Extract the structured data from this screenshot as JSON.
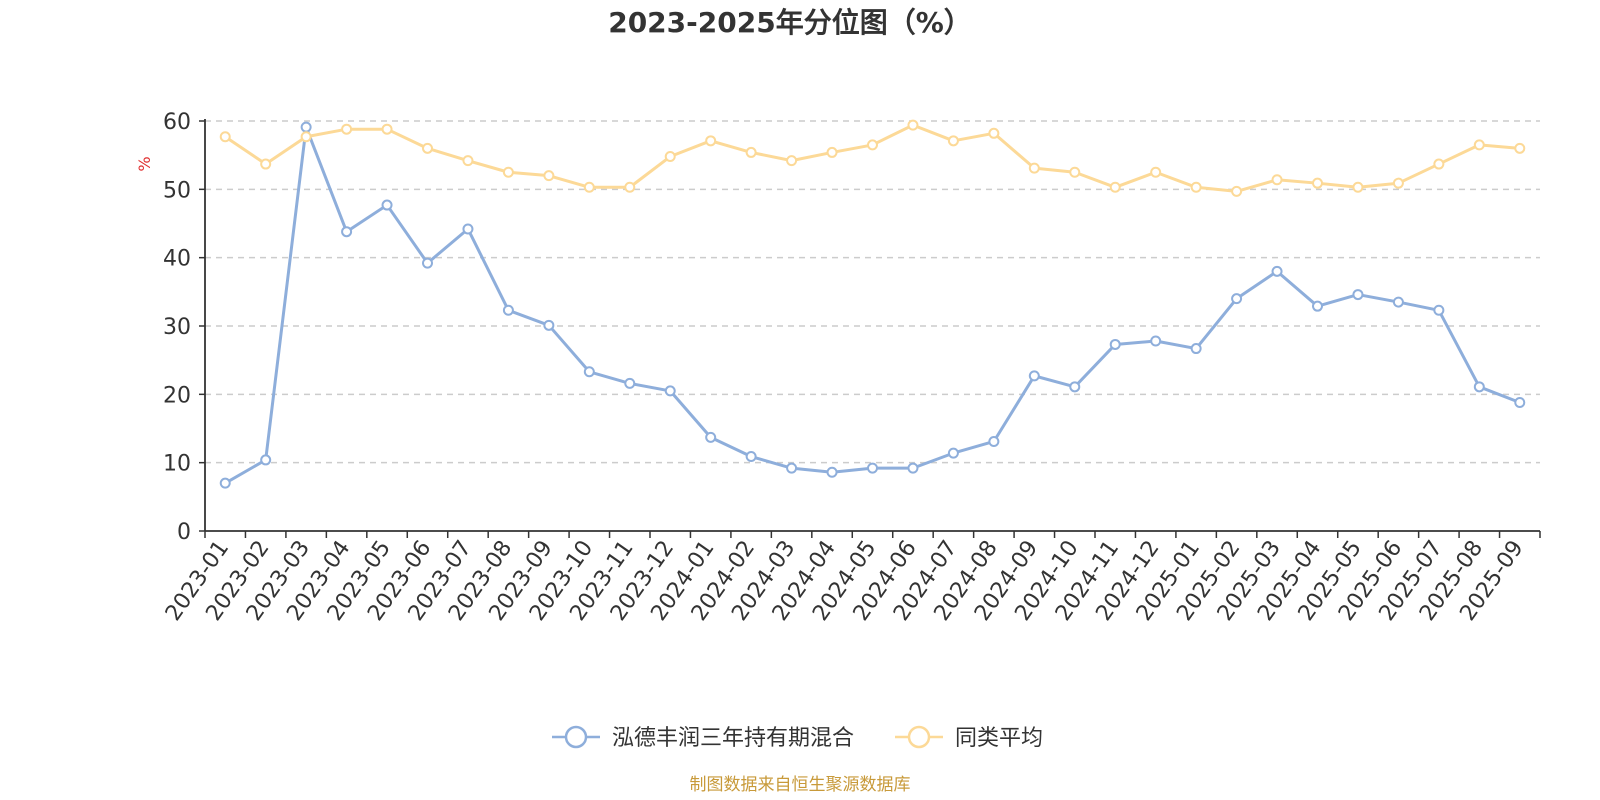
{
  "chart_data": {
    "type": "line",
    "title": "2023-2025年分位图（%）",
    "ylabel": "%",
    "xlabel": "",
    "ylim": [
      0,
      60
    ],
    "yticks": [
      0,
      10,
      20,
      30,
      40,
      50,
      60
    ],
    "grid": true,
    "legend_position": "bottom-center",
    "categories": [
      "2023-01",
      "2023-02",
      "2023-03",
      "2023-04",
      "2023-05",
      "2023-06",
      "2023-07",
      "2023-08",
      "2023-09",
      "2023-10",
      "2023-11",
      "2023-12",
      "2024-01",
      "2024-02",
      "2024-03",
      "2024-04",
      "2024-05",
      "2024-06",
      "2024-07",
      "2024-08",
      "2024-09",
      "2024-10",
      "2024-11",
      "2024-12",
      "2025-01",
      "2025-02",
      "2025-03",
      "2025-04",
      "2025-05",
      "2025-06",
      "2025-07",
      "2025-08",
      "2025-09"
    ],
    "series": [
      {
        "name": "泓德丰润三年持有期混合",
        "color": "#8eaedb",
        "values": [
          7.0,
          10.4,
          59.1,
          43.8,
          47.7,
          39.2,
          44.2,
          32.3,
          30.1,
          23.3,
          21.6,
          20.5,
          13.7,
          10.9,
          9.2,
          8.6,
          9.2,
          9.2,
          11.4,
          13.1,
          22.7,
          21.1,
          27.3,
          27.8,
          26.7,
          34.0,
          38.0,
          32.9,
          34.6,
          33.5,
          32.3,
          21.1,
          18.8
        ]
      },
      {
        "name": "同类平均",
        "color": "#fcd997",
        "values": [
          57.7,
          53.7,
          57.7,
          58.8,
          58.8,
          56.0,
          54.2,
          52.5,
          52.0,
          50.3,
          50.3,
          54.8,
          57.1,
          55.4,
          54.2,
          55.4,
          56.5,
          59.4,
          57.1,
          58.2,
          53.1,
          52.5,
          50.3,
          52.5,
          50.3,
          49.7,
          51.4,
          50.9,
          50.3,
          50.9,
          53.7,
          56.5,
          56.0
        ]
      }
    ]
  },
  "source_text": "制图数据来自恒生聚源数据库"
}
